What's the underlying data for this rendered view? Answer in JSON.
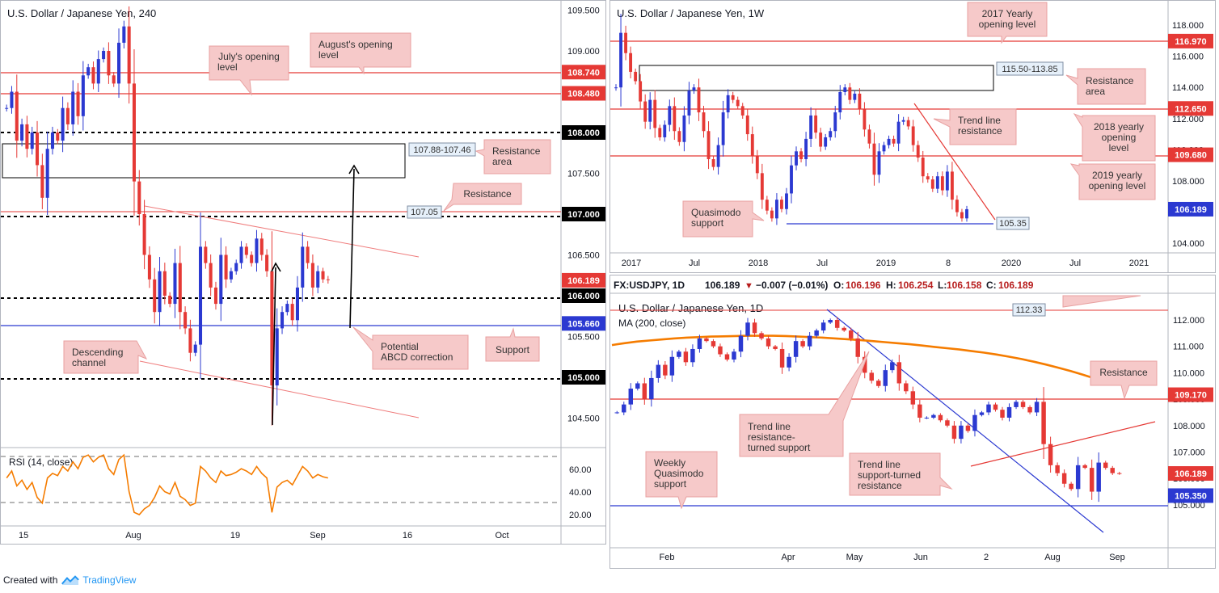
{
  "footer": {
    "created_with": "Created with",
    "brand": "TradingView"
  },
  "charts": [
    {
      "id": "usdjpy-h4",
      "title": "U.S. Dollar / Japanese Yen, 240",
      "price_scale": [
        "109.500",
        "109.000",
        "108.500",
        "108.000",
        "107.500",
        "107.000",
        "106.500",
        "106.000",
        "105.500",
        "105.000",
        "104.500"
      ],
      "time_scale": [
        "15",
        "Aug",
        "19",
        "Sep",
        "16",
        "Oct"
      ],
      "levels": [
        {
          "label": "108.740",
          "value": 108.74,
          "kind": "resistance",
          "color": "#e53935"
        },
        {
          "label": "108.480",
          "value": 108.48,
          "kind": "resistance",
          "color": "#e53935"
        },
        {
          "label": "108.000",
          "value": 108.0,
          "kind": "round",
          "color": "#000000"
        },
        {
          "label": "107.000",
          "value": 107.0,
          "kind": "round",
          "color": "#000000"
        },
        {
          "label": "106.189",
          "value": 106.189,
          "kind": "last",
          "color": "#e53935"
        },
        {
          "label": "106.000",
          "value": 106.0,
          "kind": "round",
          "color": "#000000"
        },
        {
          "label": "105.660",
          "value": 105.66,
          "kind": "support",
          "color": "#2b39d1"
        },
        {
          "label": "105.000",
          "value": 105.0,
          "kind": "round",
          "color": "#000000"
        }
      ],
      "zone_label": "107.88-107.46",
      "resistance_tag": "107.05",
      "annotations": [
        "July's opening level",
        "August's opening level",
        "Resistance area",
        "Resistance",
        "Potential ABCD correction",
        "Support",
        "Descending channel"
      ],
      "rsi": {
        "title": "RSI (14, close)",
        "scale": [
          "60.00",
          "40.00",
          "20.00"
        ],
        "bands": [
          70,
          30
        ]
      },
      "closes": [
        108.3,
        108.5,
        107.9,
        108.1,
        107.8,
        108.0,
        107.6,
        107.2,
        107.8,
        108.0,
        107.9,
        108.3,
        108.1,
        108.5,
        108.2,
        108.7,
        108.8,
        108.6,
        108.9,
        109.0,
        108.7,
        108.6,
        109.1,
        109.3,
        108.6,
        107.4,
        107.0,
        106.5,
        106.2,
        105.8,
        106.3,
        106.0,
        105.9,
        106.4,
        105.8,
        105.6,
        105.3,
        105.4,
        106.6,
        106.4,
        106.1,
        105.9,
        106.5,
        106.2,
        106.3,
        106.4,
        106.6,
        106.5,
        106.4,
        106.7,
        106.5,
        106.3,
        104.9,
        105.6,
        105.8,
        105.9,
        105.7,
        106.1,
        106.6,
        106.4,
        106.1,
        106.3,
        106.2,
        106.19
      ],
      "rsi_values": [
        52,
        58,
        45,
        50,
        42,
        48,
        35,
        30,
        52,
        56,
        54,
        62,
        58,
        66,
        60,
        70,
        72,
        66,
        70,
        72,
        60,
        55,
        68,
        72,
        40,
        22,
        20,
        25,
        28,
        35,
        45,
        40,
        38,
        48,
        36,
        33,
        28,
        30,
        62,
        58,
        52,
        48,
        58,
        54,
        55,
        57,
        60,
        58,
        55,
        62,
        56,
        52,
        22,
        44,
        48,
        50,
        46,
        54,
        62,
        58,
        52,
        55,
        53,
        52
      ]
    },
    {
      "id": "usdjpy-weekly",
      "title": "U.S. Dollar / Japanese Yen, 1W",
      "price_scale": [
        "118.000",
        "116.000",
        "114.000",
        "112.000",
        "110.000",
        "108.000",
        "106.000",
        "104.000"
      ],
      "time_scale": [
        "2017",
        "Jul",
        "2018",
        "Jul",
        "2019",
        "8",
        "2020",
        "Jul",
        "2021"
      ],
      "levels": [
        {
          "label": "116.970",
          "value": 116.97,
          "kind": "resistance",
          "color": "#e53935"
        },
        {
          "label": "112.650",
          "value": 112.65,
          "kind": "resistance",
          "color": "#e53935"
        },
        {
          "label": "109.680",
          "value": 109.68,
          "kind": "resistance",
          "color": "#e53935"
        },
        {
          "label": "106.189",
          "value": 106.189,
          "kind": "last",
          "color": "#2b39d1"
        }
      ],
      "zone_label": "115.50-113.85",
      "support_tag": "105.35",
      "annotations": [
        "2017 Yearly opening level",
        "Resistance area",
        "Trend line resistance",
        "2018 yearly opening level",
        "2019 yearly opening level",
        "Quasimodo support"
      ],
      "closes": [
        114.0,
        117.5,
        116.2,
        115.0,
        114.4,
        113.1,
        111.8,
        113.2,
        111.4,
        110.8,
        111.6,
        112.8,
        111.2,
        110.5,
        112.2,
        113.8,
        114.0,
        112.4,
        111.2,
        109.4,
        108.9,
        110.3,
        112.4,
        113.5,
        113.2,
        112.8,
        112.2,
        111.0,
        109.6,
        108.5,
        106.8,
        106.1,
        105.6,
        106.8,
        106.2,
        107.2,
        109.0,
        109.9,
        109.4,
        110.7,
        112.2,
        111.1,
        110.2,
        110.8,
        111.2,
        112.4,
        113.7,
        114.0,
        113.2,
        113.6,
        112.6,
        111.3,
        110.4,
        108.4,
        109.9,
        110.3,
        110.7,
        110.4,
        111.8,
        111.9,
        111.5,
        110.3,
        109.5,
        108.3,
        108.1,
        107.5,
        108.3,
        107.4,
        108.6,
        106.8,
        106.0,
        105.6,
        106.19
      ],
      "color_band": "#e53935"
    },
    {
      "id": "usdjpy-daily",
      "title": "U.S. Dollar / Japanese Yen, 1D",
      "header": {
        "symbol": "FX:USDJPY, 1D",
        "last": "106.189",
        "change": "−0.007 (−0.01%)",
        "o": "106.196",
        "h": "106.254",
        "l": "106.158",
        "c": "106.189"
      },
      "ma_label": "MA (200, close)",
      "price_scale": [
        "112.000",
        "111.000",
        "110.000",
        "109.000",
        "108.000",
        "107.000",
        "106.000",
        "105.000"
      ],
      "time_scale": [
        "Feb",
        "Apr",
        "May",
        "Jun",
        "2",
        "Aug",
        "Sep"
      ],
      "levels": [
        {
          "label": "109.170",
          "value": 109.17,
          "kind": "resistance",
          "color": "#e53935"
        },
        {
          "label": "106.189",
          "value": 106.189,
          "kind": "last",
          "color": "#e53935"
        },
        {
          "label": "105.350",
          "value": 105.35,
          "kind": "support",
          "color": "#2b39d1"
        }
      ],
      "top_tag": "112.33",
      "annotations": [
        "Resistance",
        "Trend line resistance-turned support",
        "Weekly Quasimodo support",
        "Trend line support-turned resistance"
      ],
      "closes": [
        108.5,
        108.8,
        109.4,
        109.6,
        109.0,
        109.8,
        110.3,
        109.9,
        110.6,
        110.8,
        110.4,
        110.9,
        111.3,
        111.2,
        111.0,
        110.7,
        110.5,
        110.8,
        111.4,
        111.9,
        111.5,
        111.3,
        111.0,
        110.9,
        110.2,
        110.6,
        111.2,
        111.0,
        111.4,
        111.6,
        111.9,
        112.0,
        111.7,
        111.6,
        111.3,
        110.6,
        110.0,
        109.7,
        109.5,
        110.1,
        110.4,
        109.6,
        109.3,
        108.8,
        108.3,
        108.3,
        108.4,
        108.2,
        108.0,
        107.5,
        108.0,
        107.8,
        108.4,
        108.5,
        108.8,
        108.6,
        108.3,
        108.7,
        108.9,
        108.7,
        108.5,
        108.9,
        107.3,
        106.5,
        106.2,
        105.8,
        105.6,
        106.5,
        106.4,
        105.5,
        106.6,
        106.4,
        106.2,
        106.189
      ],
      "ma_values": [
        111.05,
        111.12,
        111.18,
        111.22,
        111.26,
        111.3,
        111.33,
        111.35,
        111.37,
        111.38,
        111.39,
        111.4,
        111.4,
        111.4,
        111.39,
        111.37,
        111.35,
        111.33,
        111.3,
        111.27,
        111.24,
        111.2,
        111.16,
        111.12,
        111.08,
        111.03,
        110.98,
        110.93,
        110.88,
        110.82,
        110.76,
        110.69,
        110.61,
        110.52,
        110.42,
        110.31,
        110.19,
        110.06,
        109.92,
        109.77,
        109.61
      ]
    }
  ]
}
